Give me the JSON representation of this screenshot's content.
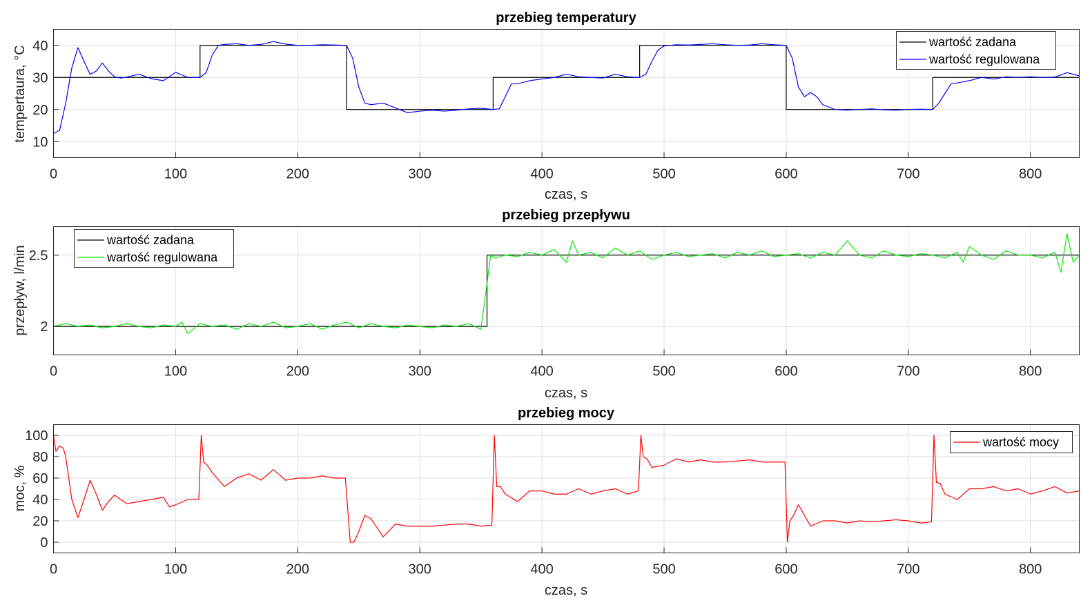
{
  "chart_data": [
    {
      "type": "line",
      "title": "przebieg temperatury",
      "xlabel": "czas, s",
      "ylabel": "tempertaura, °C",
      "xlim": [
        0,
        840
      ],
      "ylim": [
        5,
        45
      ],
      "xticks": [
        0,
        100,
        200,
        300,
        400,
        500,
        600,
        700,
        800
      ],
      "yticks": [
        10,
        20,
        30,
        40
      ],
      "grid": true,
      "legend_position": "top-right",
      "series": [
        {
          "name": "wartość zadana",
          "color": "#000000",
          "step": true,
          "x": [
            0,
            120,
            240,
            360,
            480,
            600,
            720,
            840
          ],
          "y": [
            30,
            40,
            20,
            30,
            40,
            20,
            30,
            30
          ]
        },
        {
          "name": "wartość regulowana",
          "color": "#0000ff",
          "x": [
            0,
            5,
            10,
            15,
            20,
            25,
            30,
            35,
            40,
            45,
            50,
            55,
            60,
            70,
            80,
            90,
            100,
            110,
            120,
            125,
            130,
            135,
            140,
            150,
            160,
            170,
            180,
            190,
            200,
            210,
            220,
            230,
            240,
            245,
            250,
            255,
            260,
            270,
            280,
            290,
            300,
            310,
            320,
            330,
            340,
            350,
            360,
            365,
            370,
            375,
            380,
            390,
            400,
            410,
            420,
            430,
            440,
            450,
            460,
            470,
            480,
            485,
            490,
            495,
            500,
            510,
            520,
            530,
            540,
            550,
            560,
            570,
            580,
            590,
            600,
            605,
            610,
            615,
            620,
            625,
            630,
            640,
            650,
            660,
            670,
            680,
            690,
            700,
            710,
            720,
            725,
            730,
            735,
            740,
            750,
            760,
            770,
            780,
            790,
            800,
            810,
            820,
            830,
            840
          ],
          "y": [
            12.5,
            13.5,
            22,
            33,
            39.3,
            35,
            31,
            32,
            34.5,
            32,
            30.2,
            29.8,
            30.1,
            31,
            29.6,
            29,
            31.6,
            30,
            30,
            31.5,
            37,
            40,
            40.3,
            40.5,
            40,
            40.3,
            41.2,
            40.4,
            40,
            40,
            40.2,
            40.1,
            40,
            36,
            27,
            22,
            21.5,
            22,
            20.5,
            19,
            19.5,
            19.8,
            19.5,
            19.8,
            20.2,
            20.4,
            20,
            20.2,
            24,
            28,
            28,
            29,
            29.5,
            30,
            31,
            30.2,
            30,
            29.8,
            31,
            30.2,
            30,
            31,
            35,
            38.5,
            39.8,
            40.2,
            40.1,
            40.3,
            40.5,
            40.2,
            40,
            40.1,
            40.5,
            40.2,
            40,
            36,
            27,
            24,
            25.3,
            24,
            21.5,
            20,
            19.8,
            20,
            20.2,
            19.9,
            19.8,
            20,
            20.1,
            20,
            22,
            25,
            28,
            28.3,
            29,
            30,
            29.5,
            30.2,
            30,
            30.2,
            30,
            30.1,
            31.5,
            30.5
          ]
        }
      ]
    },
    {
      "type": "line",
      "title": "przebieg przepływu",
      "xlabel": "czas, s",
      "ylabel": "przepływ, l/min",
      "xlim": [
        0,
        840
      ],
      "ylim": [
        1.8,
        2.7
      ],
      "xticks": [
        0,
        100,
        200,
        300,
        400,
        500,
        600,
        700,
        800
      ],
      "yticks": [
        2,
        2.5
      ],
      "grid": true,
      "legend_position": "top-left",
      "series": [
        {
          "name": "wartość zadana",
          "color": "#000000",
          "step": true,
          "x": [
            0,
            355,
            840
          ],
          "y": [
            2.0,
            2.5,
            2.5
          ]
        },
        {
          "name": "wartość regulowana",
          "color": "#00ee00",
          "x": [
            0,
            10,
            20,
            30,
            40,
            50,
            60,
            70,
            80,
            90,
            100,
            105,
            110,
            120,
            130,
            140,
            150,
            160,
            170,
            180,
            190,
            200,
            210,
            220,
            230,
            240,
            250,
            260,
            270,
            280,
            290,
            300,
            310,
            320,
            330,
            340,
            350,
            355,
            358,
            362,
            370,
            380,
            390,
            400,
            410,
            420,
            425,
            430,
            440,
            450,
            460,
            470,
            480,
            490,
            500,
            510,
            520,
            530,
            540,
            550,
            560,
            570,
            580,
            590,
            600,
            610,
            620,
            630,
            640,
            650,
            660,
            670,
            680,
            690,
            700,
            710,
            720,
            730,
            740,
            745,
            750,
            760,
            770,
            780,
            790,
            800,
            810,
            820,
            825,
            830,
            835,
            840
          ],
          "y": [
            2.0,
            2.02,
            2.0,
            2.01,
            1.99,
            2.0,
            2.02,
            2.0,
            1.99,
            2.01,
            2.0,
            2.03,
            1.95,
            2.02,
            2.0,
            2.01,
            1.98,
            2.02,
            2.0,
            2.03,
            1.99,
            2.0,
            2.02,
            1.98,
            2.01,
            2.03,
            1.99,
            2.02,
            2.0,
            1.99,
            2.01,
            2.0,
            1.99,
            2.01,
            2.0,
            2.02,
            1.98,
            2.3,
            2.5,
            2.48,
            2.5,
            2.49,
            2.52,
            2.5,
            2.54,
            2.45,
            2.6,
            2.5,
            2.52,
            2.48,
            2.55,
            2.5,
            2.53,
            2.47,
            2.5,
            2.52,
            2.49,
            2.5,
            2.51,
            2.48,
            2.52,
            2.5,
            2.53,
            2.49,
            2.5,
            2.51,
            2.48,
            2.52,
            2.5,
            2.6,
            2.5,
            2.48,
            2.53,
            2.5,
            2.49,
            2.51,
            2.5,
            2.48,
            2.52,
            2.45,
            2.56,
            2.5,
            2.47,
            2.53,
            2.5,
            2.5,
            2.48,
            2.52,
            2.38,
            2.65,
            2.45,
            2.5
          ]
        }
      ]
    },
    {
      "type": "line",
      "title": "przebieg mocy",
      "xlabel": "czas, s",
      "ylabel": "moc, %",
      "xlim": [
        0,
        840
      ],
      "ylim": [
        -10,
        110
      ],
      "xticks": [
        0,
        100,
        200,
        300,
        400,
        500,
        600,
        700,
        800
      ],
      "yticks": [
        0,
        20,
        40,
        60,
        80,
        100
      ],
      "grid": true,
      "legend_position": "top-right",
      "series": [
        {
          "name": "wartość mocy",
          "color": "#ff0000",
          "x": [
            0,
            2,
            5,
            8,
            10,
            15,
            20,
            25,
            30,
            35,
            40,
            45,
            50,
            55,
            60,
            70,
            80,
            90,
            95,
            100,
            110,
            119,
            121,
            123,
            126,
            130,
            140,
            150,
            160,
            170,
            180,
            190,
            200,
            210,
            220,
            230,
            239,
            241,
            243,
            246,
            250,
            255,
            260,
            270,
            280,
            290,
            300,
            310,
            320,
            330,
            340,
            350,
            359,
            361,
            363,
            366,
            370,
            380,
            390,
            400,
            410,
            420,
            430,
            440,
            450,
            460,
            470,
            479,
            481,
            483,
            486,
            490,
            500,
            510,
            520,
            530,
            540,
            550,
            560,
            570,
            580,
            590,
            599,
            601,
            603,
            606,
            610,
            620,
            630,
            640,
            650,
            660,
            670,
            680,
            690,
            700,
            710,
            719,
            721,
            723,
            726,
            730,
            740,
            750,
            760,
            770,
            780,
            790,
            800,
            810,
            820,
            830,
            840
          ],
          "y": [
            100,
            85,
            90,
            88,
            80,
            40,
            23,
            40,
            58,
            45,
            30,
            38,
            44,
            40,
            36,
            38,
            40,
            42,
            33,
            35,
            40,
            40,
            100,
            75,
            72,
            65,
            52,
            60,
            64,
            58,
            68,
            58,
            60,
            60,
            62,
            60,
            60,
            30,
            0,
            0,
            10,
            25,
            22,
            5,
            17,
            15,
            15,
            15,
            16,
            17,
            17,
            15,
            16,
            100,
            52,
            52,
            45,
            38,
            48,
            48,
            45,
            45,
            50,
            45,
            48,
            50,
            45,
            48,
            100,
            80,
            78,
            70,
            72,
            78,
            75,
            77,
            75,
            75,
            76,
            77,
            75,
            75,
            75,
            0,
            20,
            25,
            35,
            15,
            20,
            20,
            18,
            20,
            19,
            20,
            21,
            20,
            18,
            19,
            100,
            56,
            55,
            45,
            40,
            50,
            50,
            52,
            48,
            50,
            45,
            48,
            52,
            46,
            48
          ]
        }
      ]
    }
  ]
}
